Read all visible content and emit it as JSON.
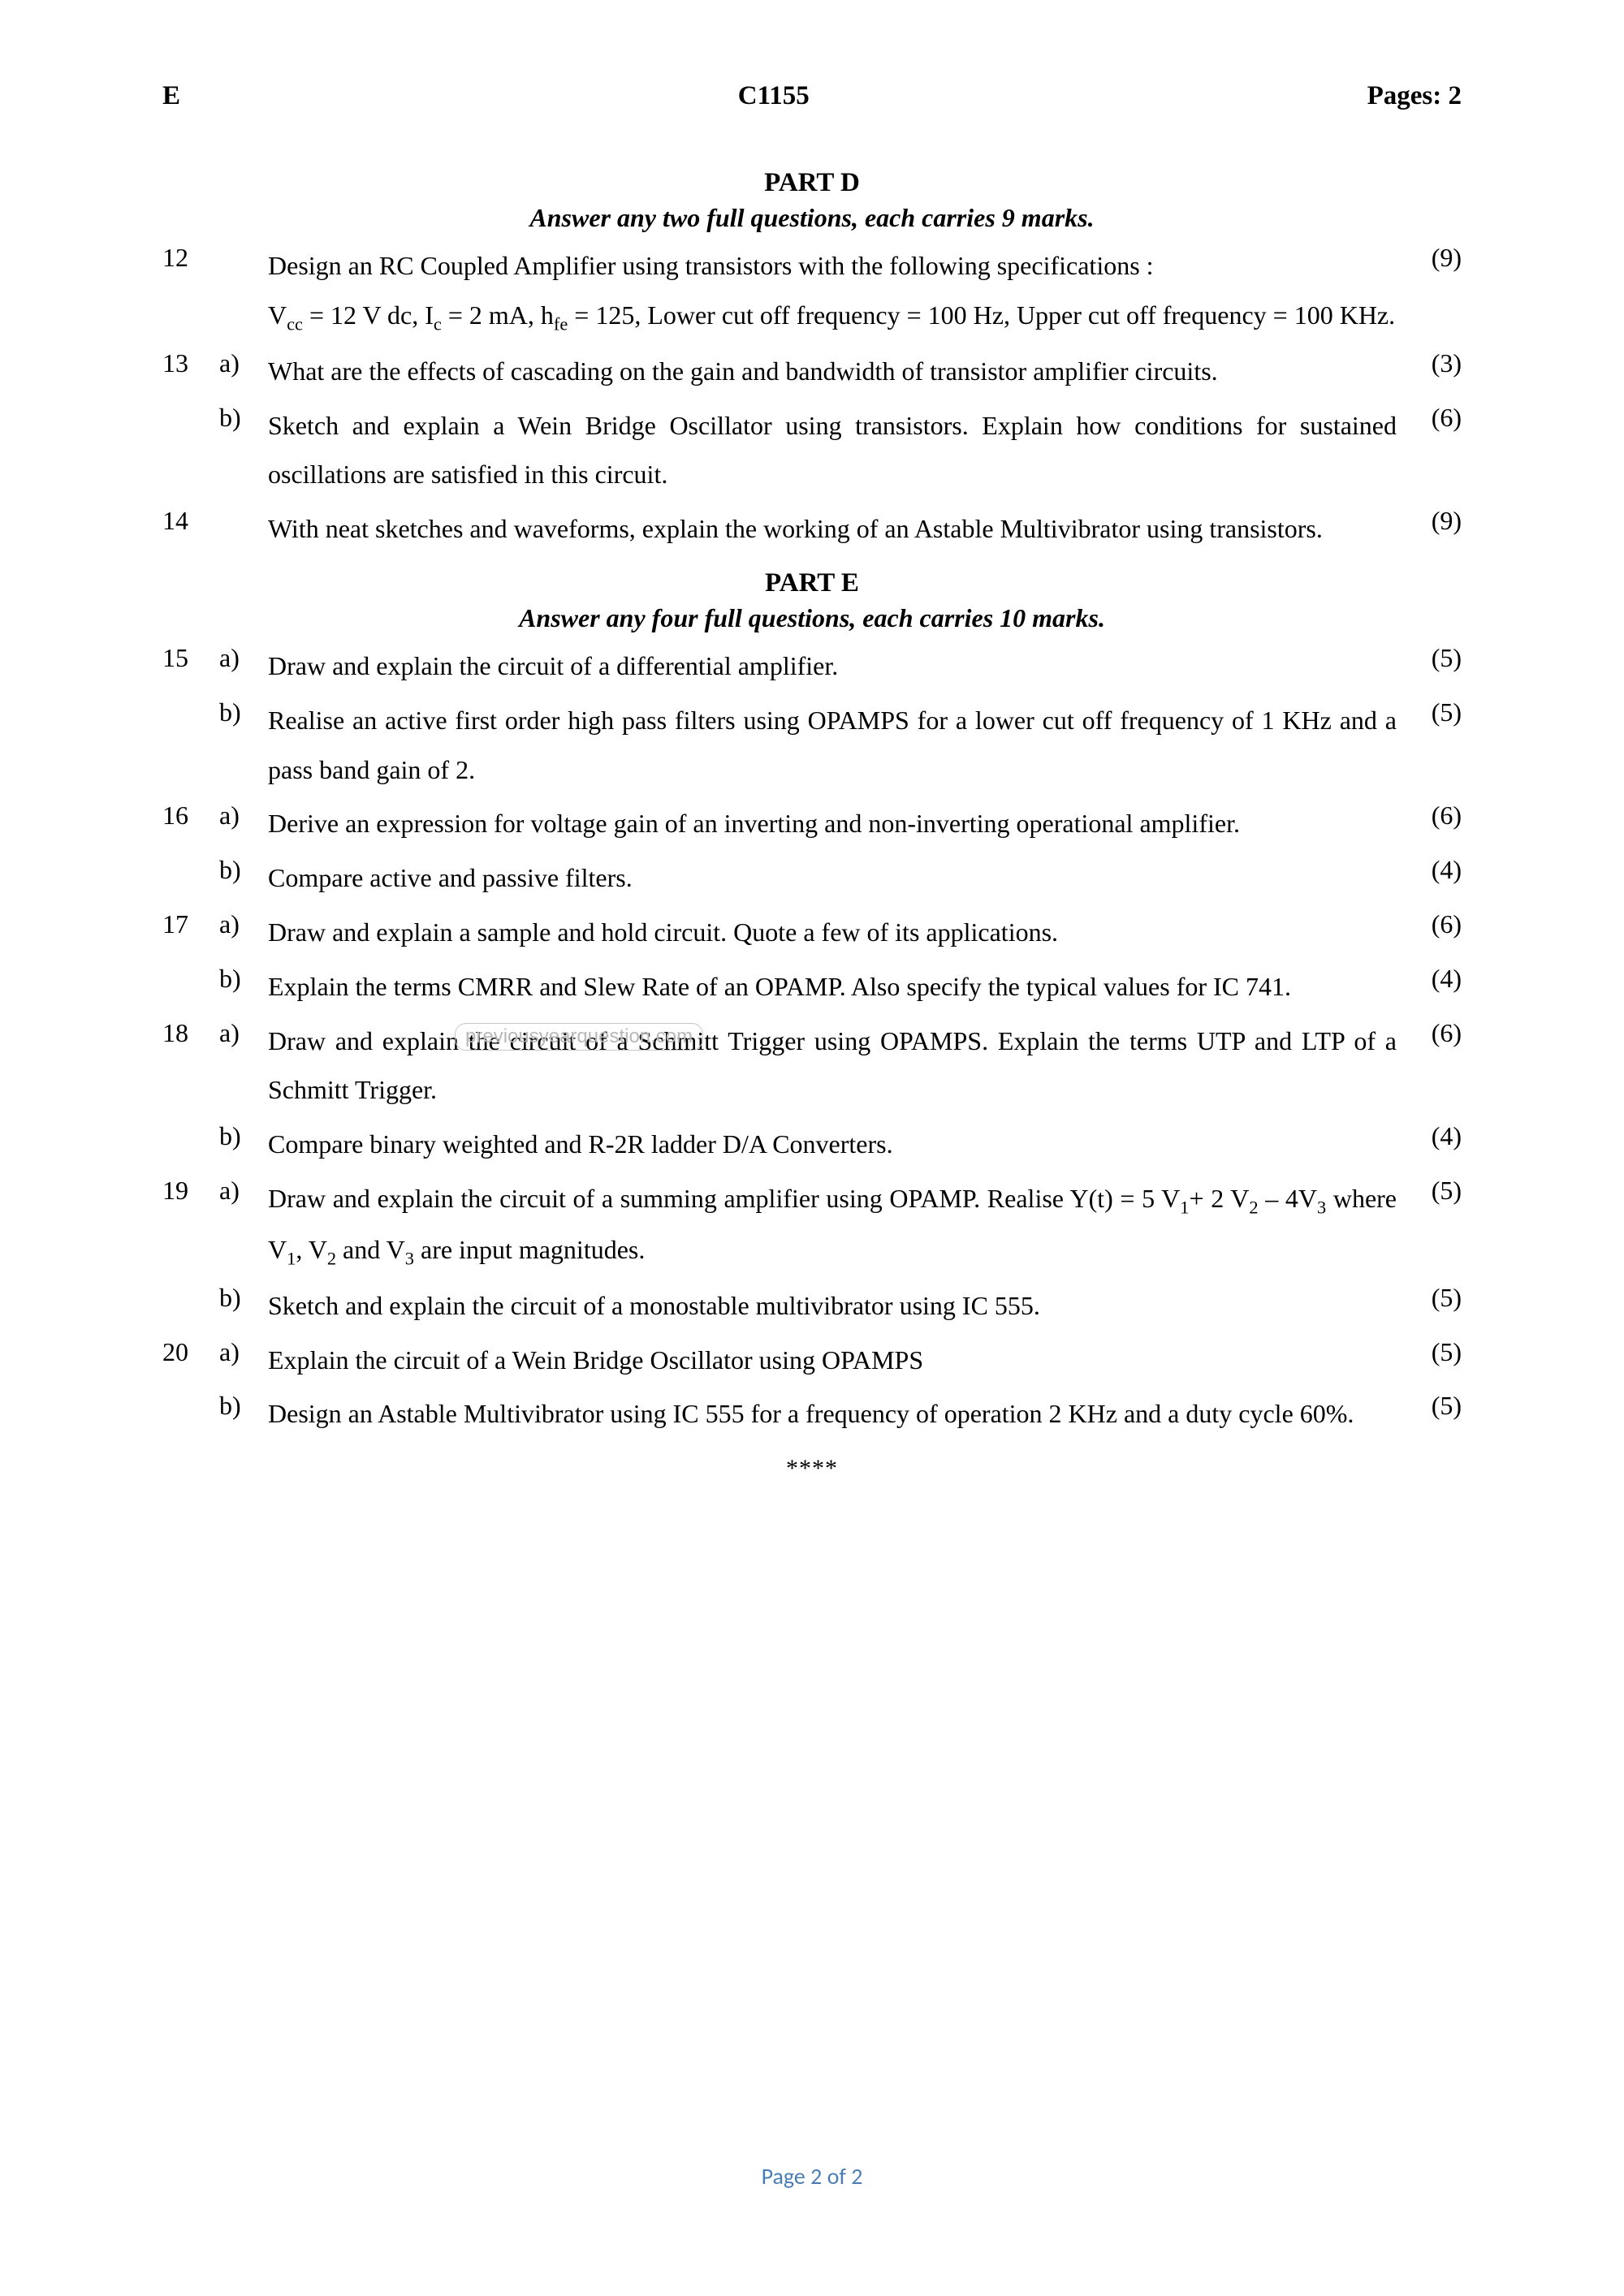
{
  "header": {
    "left": "E",
    "center": "C1155",
    "right": "Pages: 2"
  },
  "partD": {
    "title": "PART D",
    "instruction": "Answer any two full questions, each carries 9 marks."
  },
  "partE": {
    "title": "PART E",
    "instruction": "Answer any four full questions, each carries 10 marks."
  },
  "watermark": "previousyearquestion.com",
  "q12": {
    "num": "12",
    "text1": "Design an RC Coupled Amplifier using transistors with the following specifications :",
    "text2_pre": "V",
    "text2_sub1": "cc",
    "text2_mid1": " =  12 V dc, I",
    "text2_sub2": "c",
    "text2_mid2": " = 2 mA, h",
    "text2_sub3": "fe",
    "text2_mid3": " = 125, Lower cut off frequency = 100 Hz, Upper cut off frequency = 100 KHz.",
    "marks": "(9)"
  },
  "q13a": {
    "num": "13",
    "sub": "a)",
    "text": "What are the effects of cascading on the gain and bandwidth of transistor amplifier circuits.",
    "marks": "(3)"
  },
  "q13b": {
    "sub": "b)",
    "text": "Sketch and explain a Wein Bridge Oscillator using transistors. Explain how conditions for sustained oscillations are satisfied in this circuit.",
    "marks": "(6)"
  },
  "q14": {
    "num": "14",
    "text": "With neat sketches and waveforms, explain the working of an Astable Multivibrator using transistors.",
    "marks": "(9)"
  },
  "q15a": {
    "num": "15",
    "sub": "a)",
    "text": "Draw and explain the circuit of a differential amplifier.",
    "marks": "(5)"
  },
  "q15b": {
    "sub": "b)",
    "text": "Realise an active first order high pass filters using OPAMPS for a lower cut off frequency of 1 KHz and a pass band gain of 2.",
    "marks": "(5)"
  },
  "q16a": {
    "num": "16",
    "sub": "a)",
    "text": "Derive an expression for voltage gain of an inverting and non-inverting operational amplifier.",
    "marks": "(6)"
  },
  "q16b": {
    "sub": "b)",
    "text": "Compare active and passive filters.",
    "marks": "(4)"
  },
  "q17a": {
    "num": "17",
    "sub": "a)",
    "text": "Draw and explain a sample and hold circuit. Quote a few of its applications.",
    "marks": "(6)"
  },
  "q17b": {
    "sub": "b)",
    "text": "Explain the terms CMRR and Slew Rate of an OPAMP. Also specify the  typical values for IC 741.",
    "marks": "(4)"
  },
  "q18a": {
    "num": "18",
    "sub": "a)",
    "text": "Draw and explain the circuit of a Schmitt Trigger using OPAMPS. Explain the terms UTP and LTP of a Schmitt Trigger.",
    "marks": "(6)"
  },
  "q18b": {
    "sub": "b)",
    "text": "Compare binary weighted and R-2R ladder D/A Converters.",
    "marks": "(4)"
  },
  "q19a": {
    "num": "19",
    "sub": "a)",
    "t1": "Draw and explain the circuit of a summing amplifier using OPAMP. Realise Y(t) = 5 V",
    "s1": "1",
    "t2": "+ 2 V",
    "s2": "2",
    "t3": " – 4V",
    "s3": "3",
    "t4": " where V",
    "s4": "1",
    "t5": ", V",
    "s5": "2",
    "t6": " and V",
    "s6": "3",
    "t7": " are input magnitudes.",
    "marks": "(5)"
  },
  "q19b": {
    "sub": "b)",
    "text": "Sketch and explain the circuit of a monostable multivibrator using IC 555.",
    "marks": "(5)"
  },
  "q20a": {
    "num": "20",
    "sub": "a)",
    "text": "Explain the circuit of a Wein Bridge Oscillator using OPAMPS",
    "marks": "(5)"
  },
  "q20b": {
    "sub": "b)",
    "text": "Design an Astable Multivibrator using IC 555 for a frequency of operation 2 KHz and a duty cycle 60%.",
    "marks": "(5)"
  },
  "endStars": "****",
  "footer": "Page 2 of 2"
}
